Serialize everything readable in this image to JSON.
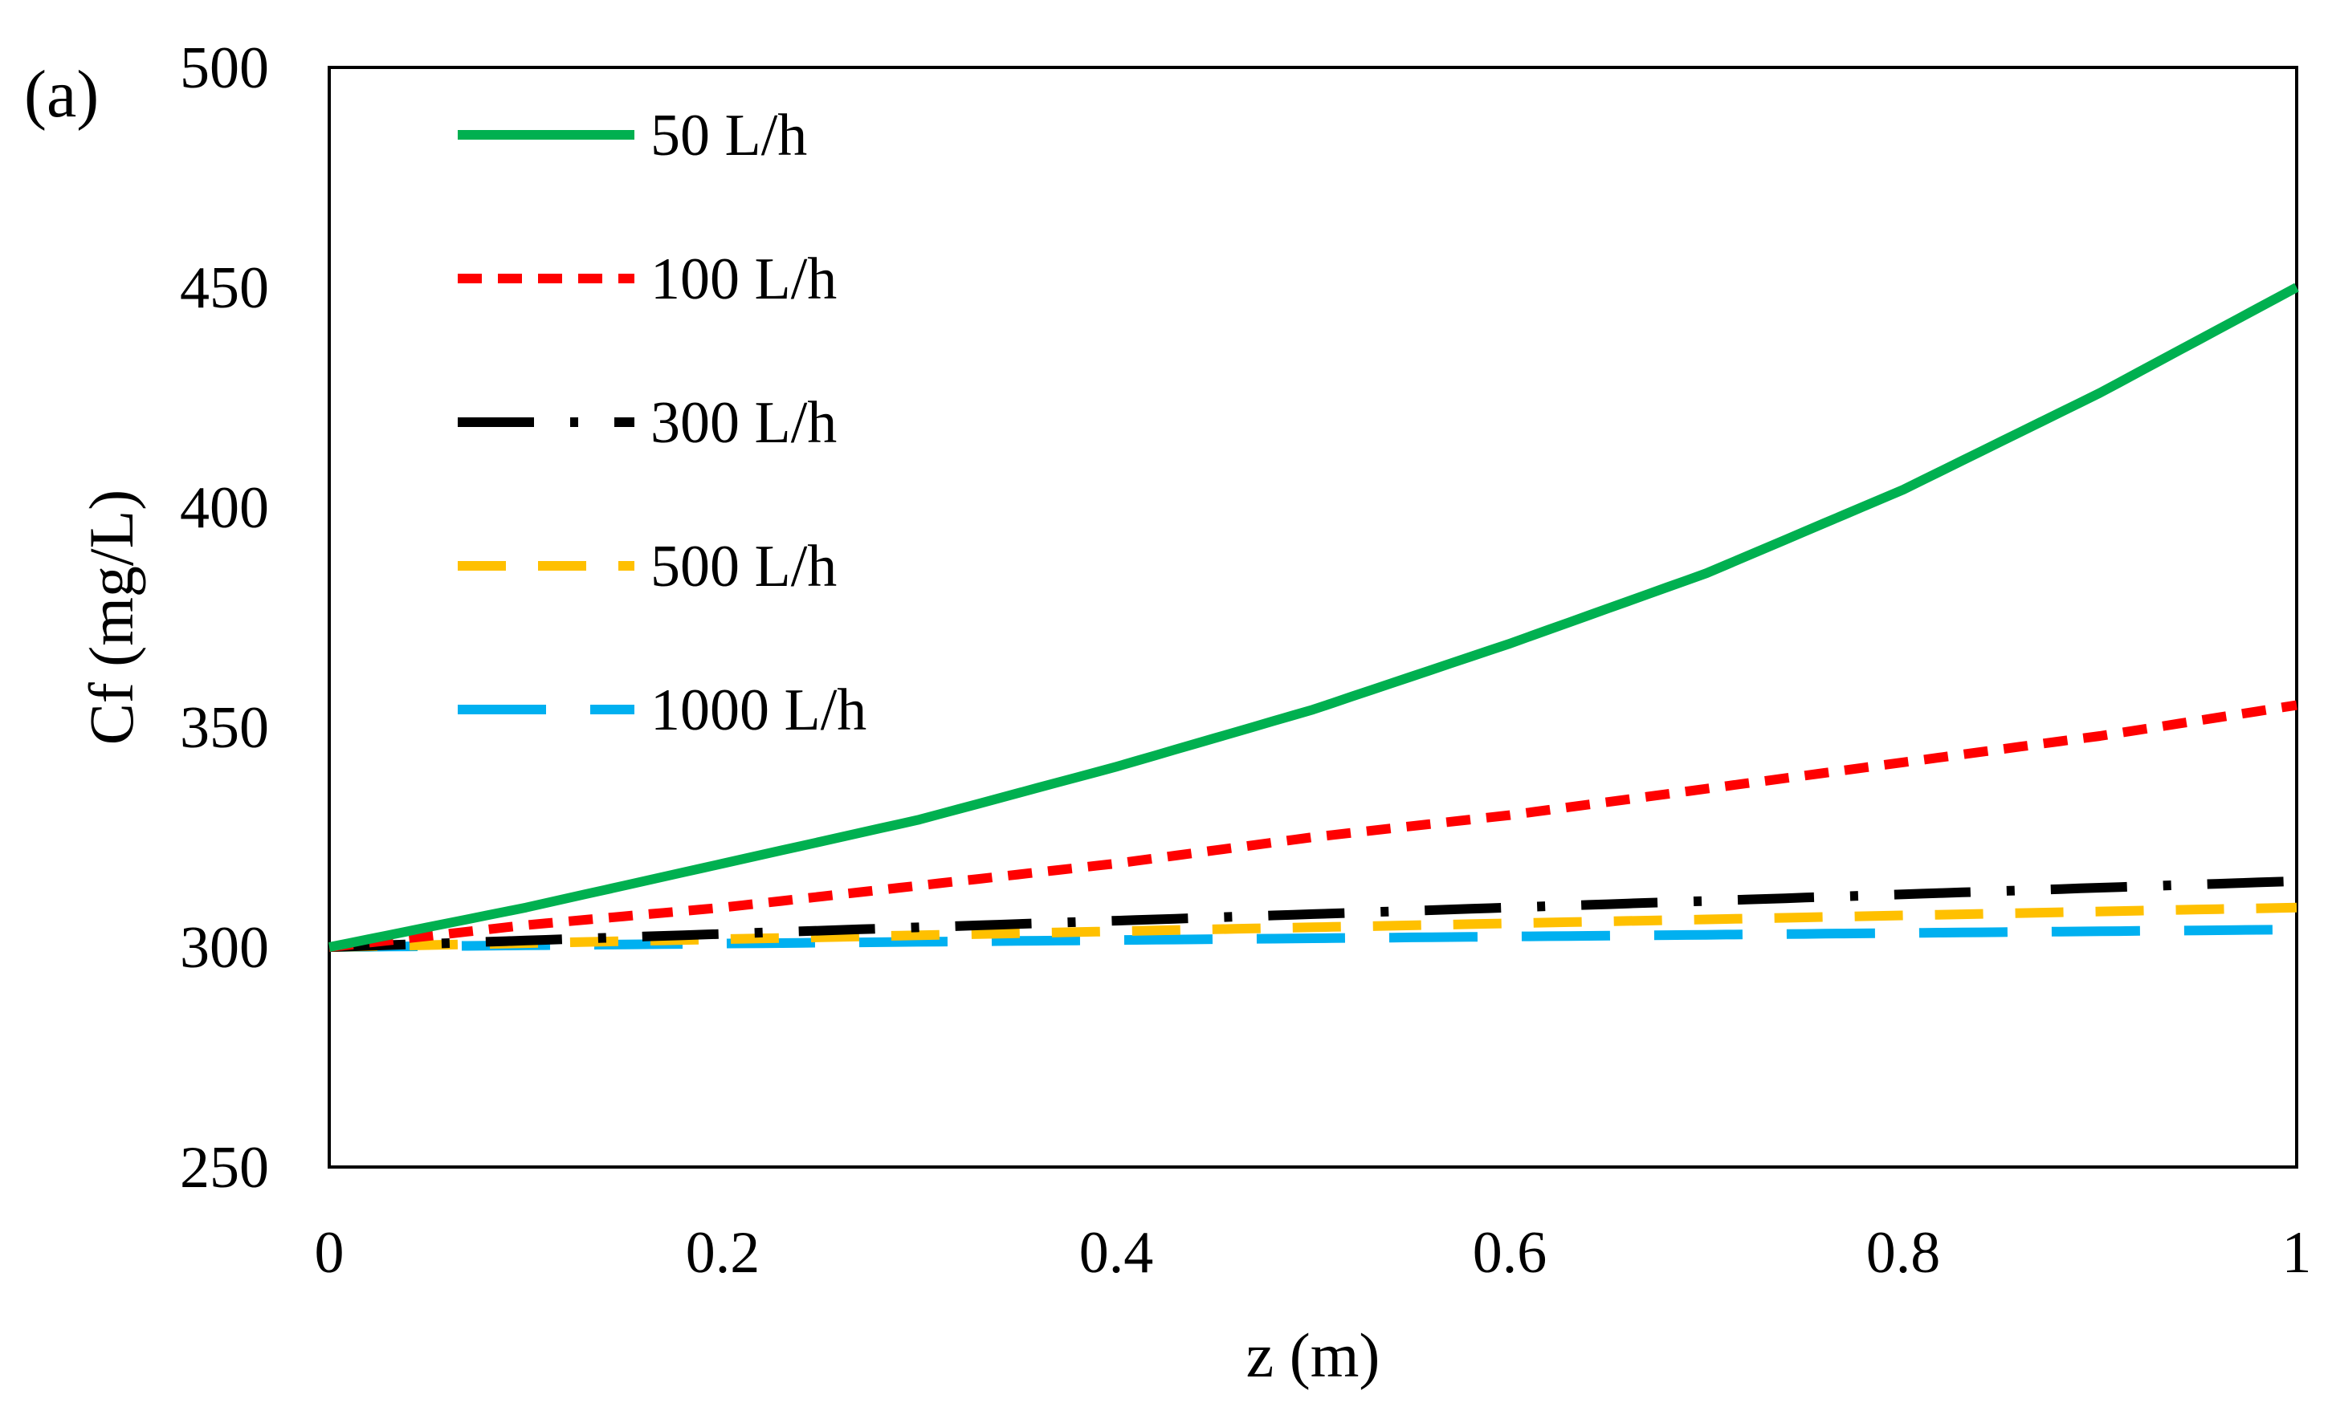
{
  "panel_label": "(a)",
  "chart_data": {
    "type": "line",
    "title": "",
    "xlabel": "z (m)",
    "ylabel": "Cf (mg/L)",
    "xlim": [
      0,
      1
    ],
    "ylim": [
      250,
      500
    ],
    "xticks": [
      0,
      0.2,
      0.4,
      0.6,
      0.8,
      1
    ],
    "xtick_labels": [
      "0",
      "0.2",
      "0.4",
      "0.6",
      "0.8",
      "1"
    ],
    "yticks": [
      250,
      300,
      350,
      400,
      450,
      500
    ],
    "ytick_labels": [
      "250",
      "300",
      "350",
      "400",
      "450",
      "500"
    ],
    "grid": false,
    "legend_position": "top-left",
    "x": [
      0,
      0.1,
      0.2,
      0.3,
      0.4,
      0.5,
      0.6,
      0.7,
      0.8,
      0.9,
      1.0
    ],
    "series": [
      {
        "name": "50 L/h",
        "style": "solid",
        "color": "#00b050",
        "values": [
          300,
          309,
          319,
          329,
          341,
          354,
          369,
          385,
          404,
          426,
          450
        ]
      },
      {
        "name": "100 L/h",
        "style": "short-dash",
        "color": "#ff0000",
        "values": [
          300,
          305,
          309,
          314,
          319,
          325,
          330,
          336,
          342,
          348,
          355
        ]
      },
      {
        "name": "300 L/h",
        "style": "long-dash-dot",
        "color": "#000000",
        "values": [
          300,
          301.5,
          303,
          304.5,
          306,
          307.5,
          309,
          310.5,
          312,
          313.5,
          315
        ]
      },
      {
        "name": "500 L/h",
        "style": "dash",
        "color": "#ffc000",
        "values": [
          300,
          300.9,
          301.8,
          302.7,
          303.6,
          304.5,
          305.4,
          306.3,
          307.2,
          308.1,
          309
        ]
      },
      {
        "name": "1000 L/h",
        "style": "long-dash",
        "color": "#00b0f0",
        "values": [
          300,
          300.4,
          300.8,
          301.2,
          301.6,
          302,
          302.4,
          302.8,
          303.2,
          303.6,
          304
        ]
      }
    ]
  }
}
